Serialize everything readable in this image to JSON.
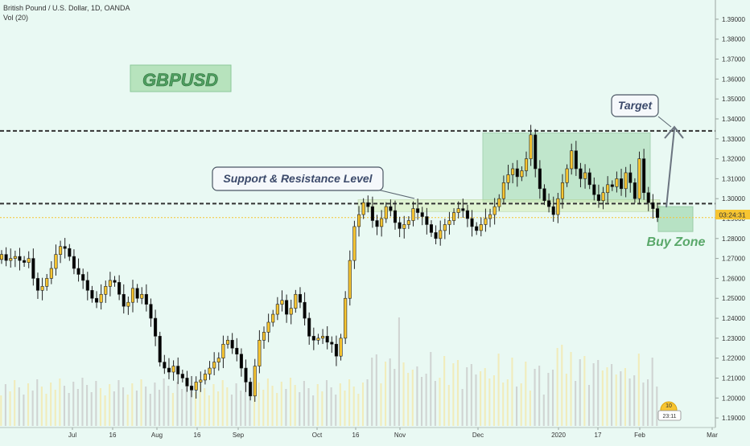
{
  "header": {
    "symbol_title": "British Pound / U.S. Dollar, 1D, OANDA",
    "volume_label": "Vol (20)"
  },
  "annotations": {
    "logo_text": "GBPUSD",
    "support_label": "Support & Resistance Level",
    "target_label": "Target",
    "buy_zone_label": "Buy Zone"
  },
  "price_tag": {
    "countdown": "03:24:31",
    "color": "#f7c531"
  },
  "widget": {
    "top": "10",
    "bottom": "23:11"
  },
  "colors": {
    "background": "#e9f9f3",
    "bull_candle": "#f7c531",
    "bear_candle": "#000000",
    "zone_fill": "#8fd19e",
    "zone_border": "#5aa86a",
    "buy_zone_text": "#5aa86a",
    "volume_bar": "#f3e7a8",
    "volume_bar_dark": "#c7c7c7"
  },
  "chart_data": {
    "type": "candlestick",
    "title": "British Pound / U.S. Dollar, 1D, OANDA",
    "y_axis": {
      "ticks": [
        "1.39000",
        "1.38000",
        "1.37000",
        "1.36000",
        "1.35000",
        "1.34000",
        "1.33000",
        "1.32000",
        "1.31000",
        "1.30000",
        "1.29000",
        "1.28000",
        "1.27000",
        "1.26000",
        "1.25000",
        "1.24000",
        "1.23000",
        "1.22000",
        "1.21000",
        "1.20000",
        "1.19000"
      ],
      "range": [
        1.186,
        1.394
      ]
    },
    "x_axis": {
      "ticks": [
        "Jul",
        "16",
        "Aug",
        "16",
        "Sep",
        "Oct",
        "16",
        "Nov",
        "Dec",
        "2020",
        "17",
        "Feb",
        "Mar"
      ]
    },
    "levels": {
      "resistance": 1.334,
      "support": 1.2975,
      "last_price": 1.2905
    },
    "zones": [
      {
        "name": "range-box",
        "from_price": 1.2985,
        "to_price": 1.333
      },
      {
        "name": "buy-zone",
        "from_price": 1.2835,
        "to_price": 1.296
      }
    ],
    "closes": [
      1.272,
      1.269,
      1.27,
      1.271,
      1.269,
      1.268,
      1.27,
      1.26,
      1.254,
      1.256,
      1.26,
      1.265,
      1.272,
      1.276,
      1.275,
      1.271,
      1.265,
      1.262,
      1.259,
      1.254,
      1.25,
      1.248,
      1.252,
      1.256,
      1.259,
      1.258,
      1.252,
      1.246,
      1.248,
      1.255,
      1.25,
      1.252,
      1.247,
      1.24,
      1.231,
      1.218,
      1.215,
      1.213,
      1.216,
      1.212,
      1.21,
      1.206,
      1.204,
      1.208,
      1.209,
      1.212,
      1.215,
      1.218,
      1.22,
      1.227,
      1.229,
      1.225,
      1.222,
      1.215,
      1.208,
      1.201,
      1.216,
      1.229,
      1.233,
      1.238,
      1.242,
      1.247,
      1.249,
      1.242,
      1.245,
      1.252,
      1.248,
      1.24,
      1.231,
      1.229,
      1.23,
      1.231,
      1.228,
      1.227,
      1.221,
      1.23,
      1.25,
      1.269,
      1.286,
      1.292,
      1.298,
      1.296,
      1.289,
      1.286,
      1.29,
      1.296,
      1.294,
      1.288,
      1.285,
      1.287,
      1.289,
      1.295,
      1.293,
      1.291,
      1.287,
      1.283,
      1.28,
      1.284,
      1.287,
      1.289,
      1.293,
      1.295,
      1.294,
      1.29,
      1.286,
      1.284,
      1.287,
      1.29,
      1.292,
      1.296,
      1.3,
      1.308,
      1.312,
      1.315,
      1.311,
      1.314,
      1.32,
      1.332,
      1.315,
      1.305,
      1.299,
      1.296,
      1.292,
      1.3,
      1.308,
      1.315,
      1.324,
      1.315,
      1.31,
      1.313,
      1.307,
      1.302,
      1.299,
      1.303,
      1.307,
      1.306,
      1.31,
      1.305,
      1.313,
      1.308,
      1.3,
      1.32,
      1.303,
      1.298,
      1.295,
      1.2905
    ]
  }
}
